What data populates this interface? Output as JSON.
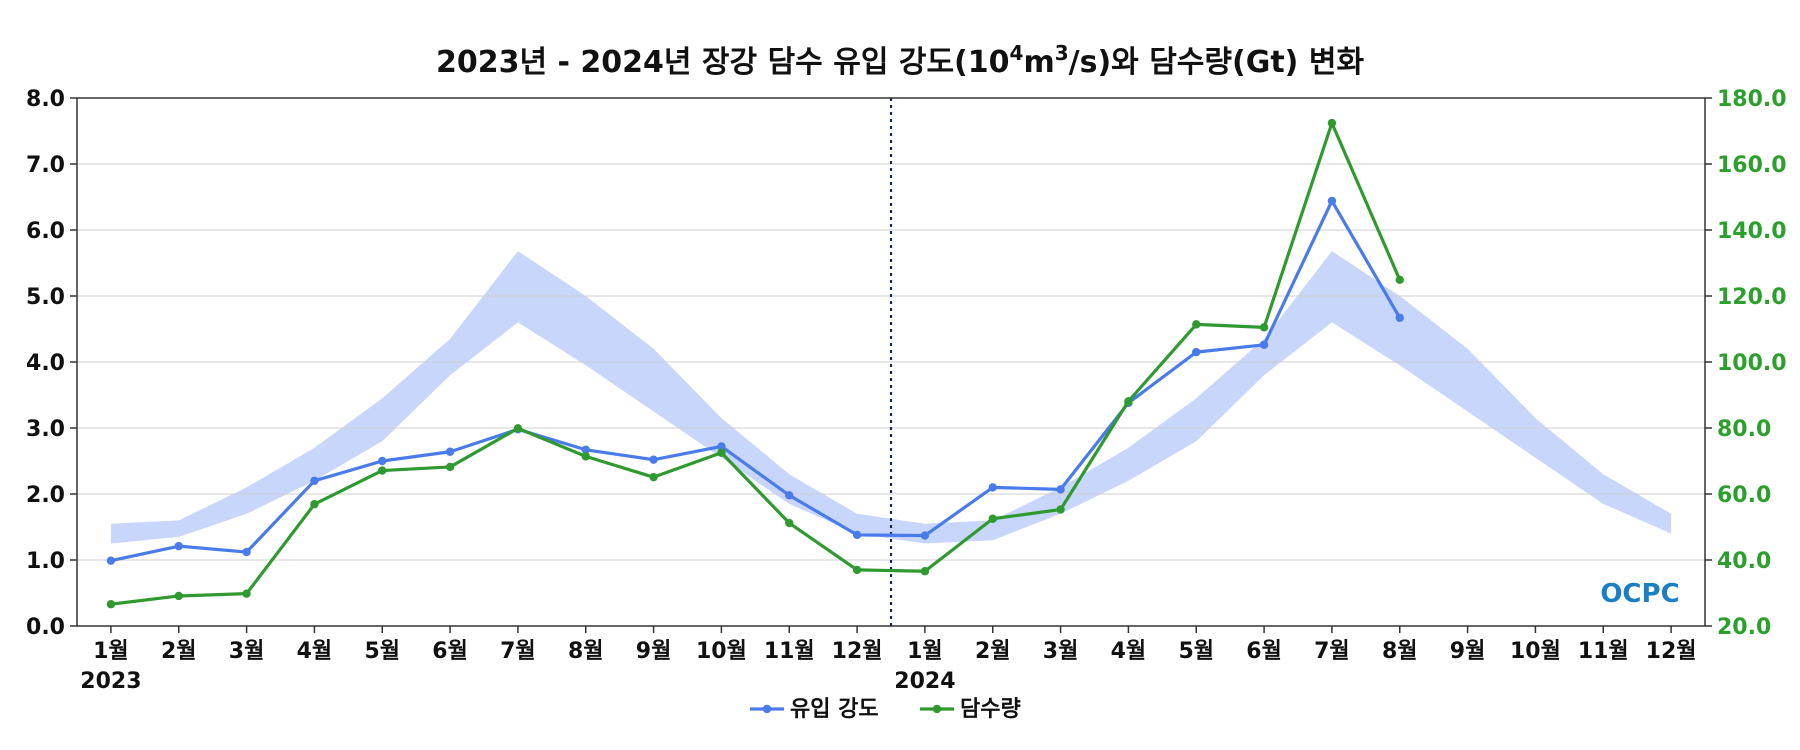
{
  "chart_data": {
    "type": "line",
    "title": {
      "prefix": "2023년 - 2024년 장강 담수 유입 강도(10",
      "sup1": "4",
      "mid": "m",
      "sup2": "3",
      "suffix": "/s)와 담수량(Gt) 변화"
    },
    "x": [
      "1월",
      "2월",
      "3월",
      "4월",
      "5월",
      "6월",
      "7월",
      "8월",
      "9월",
      "10월",
      "11월",
      "12월",
      "1월",
      "2월",
      "3월",
      "4월",
      "5월",
      "6월",
      "7월",
      "8월",
      "9월",
      "10월",
      "11월",
      "12월"
    ],
    "year_labels": [
      {
        "label": "2023",
        "index": 0
      },
      {
        "label": "2024",
        "index": 12
      }
    ],
    "divider_after_index": 11,
    "y_left": {
      "lim": [
        0,
        8
      ],
      "ticks": [
        "0.0",
        "1.0",
        "2.0",
        "3.0",
        "4.0",
        "5.0",
        "6.0",
        "7.0",
        "8.0"
      ]
    },
    "y_right": {
      "lim": [
        20,
        180
      ],
      "ticks": [
        "20.0",
        "40.0",
        "60.0",
        "80.0",
        "100.0",
        "120.0",
        "140.0",
        "160.0",
        "180.0"
      ]
    },
    "grid": true,
    "legend_position": "bottom-center",
    "band": {
      "color": "#c8d6fb",
      "lower": [
        1.25,
        1.35,
        1.7,
        2.2,
        2.8,
        3.8,
        4.6,
        3.95,
        3.25,
        2.55,
        1.85,
        1.4,
        1.25,
        1.3,
        1.7,
        2.2,
        2.8,
        3.8,
        4.6,
        3.95,
        3.25,
        2.55,
        1.85,
        1.4
      ],
      "upper": [
        1.55,
        1.6,
        2.1,
        2.7,
        3.45,
        4.35,
        5.68,
        5.0,
        4.2,
        3.15,
        2.3,
        1.7,
        1.55,
        1.6,
        2.1,
        2.7,
        3.45,
        4.35,
        5.68,
        5.0,
        4.2,
        3.15,
        2.3,
        1.7
      ]
    },
    "series": [
      {
        "name": "유입 강도",
        "axis": "left",
        "color": "#4a7bea",
        "values": [
          0.99,
          1.21,
          1.12,
          2.2,
          2.5,
          2.64,
          2.98,
          2.67,
          2.52,
          2.72,
          1.98,
          1.38,
          1.37,
          2.1,
          2.07,
          3.38,
          4.15,
          4.26,
          6.44,
          4.67,
          null,
          null,
          null,
          null
        ]
      },
      {
        "name": "담수량",
        "axis": "right",
        "color": "#2f9a2f",
        "values": [
          26.6,
          29.1,
          29.8,
          56.9,
          67.1,
          68.2,
          79.9,
          71.4,
          65.1,
          72.5,
          51.2,
          37.0,
          36.6,
          52.5,
          55.3,
          88.1,
          111.4,
          110.5,
          172.4,
          124.9,
          null,
          null,
          null,
          null
        ]
      }
    ],
    "watermark": "OCPC",
    "watermark_color": "#1b7fc4"
  }
}
